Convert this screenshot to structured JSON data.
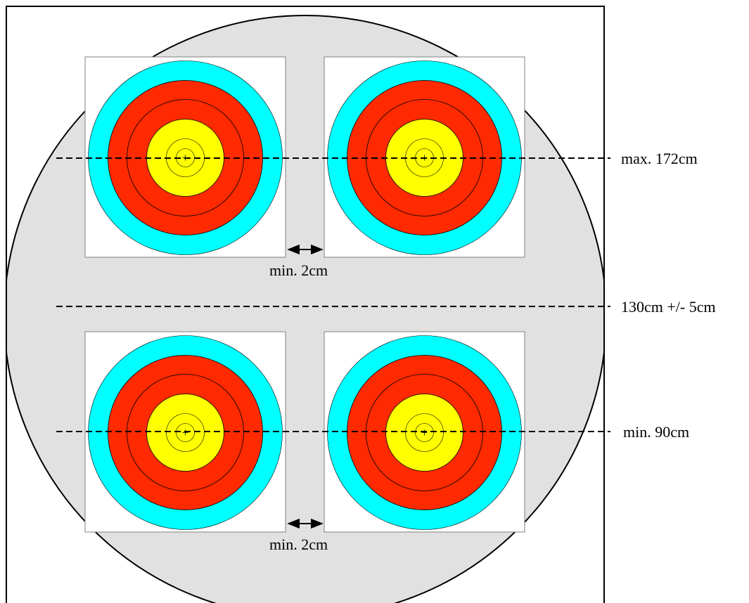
{
  "labels": {
    "top_line": "max. 172cm",
    "middle_line": "130cm +/- 5cm",
    "bottom_line": "min. 90cm",
    "gap_top": "min. 2cm",
    "gap_bottom": "min. 2cm"
  },
  "targets": [
    {
      "row": "top",
      "column": "left"
    },
    {
      "row": "top",
      "column": "right"
    },
    {
      "row": "bottom",
      "column": "left"
    },
    {
      "row": "bottom",
      "column": "right"
    }
  ],
  "colors": {
    "background_circle": "#e1e1e1",
    "outer_ring": "#00ffff",
    "red_ring": "#ff2a00",
    "gold_ring": "#ffff00",
    "target_face": "#ffffff",
    "lines": "#000000"
  }
}
